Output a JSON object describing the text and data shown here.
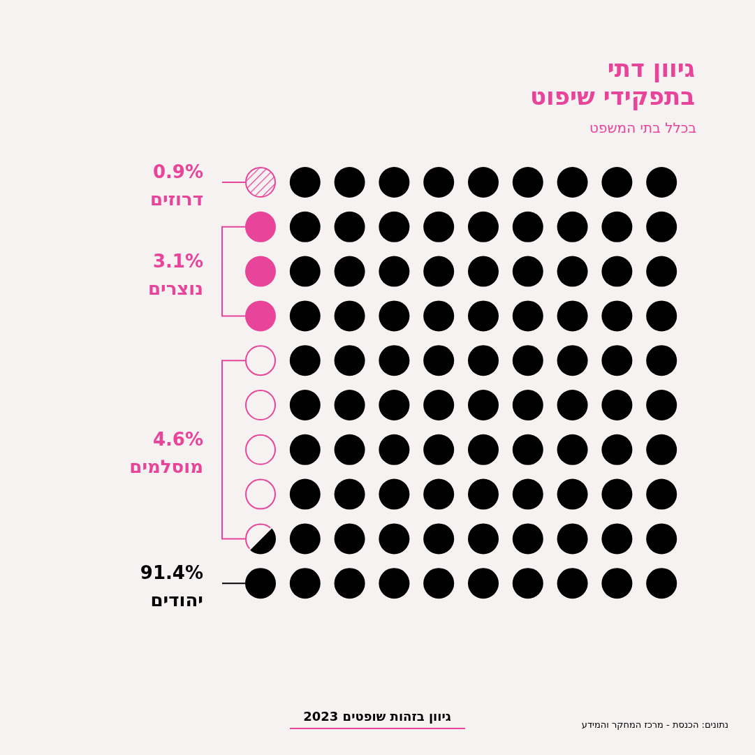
{
  "chart_data": {
    "type": "other",
    "title": "גיוון דתי\nבתפקידי שיפוט",
    "subtitle": "בכלל בתי המשפט",
    "categories": [
      "דרוזים",
      "נוצרים",
      "מוסלמים",
      "יהודים"
    ],
    "values": [
      0.9,
      3.1,
      4.6,
      91.4
    ],
    "value_labels": [
      "0.9%",
      "3.1%",
      "4.6%",
      "91.4%"
    ],
    "colors": [
      "#e8449a",
      "#e8449a",
      "#e8449a",
      "#000000"
    ],
    "annotations": [
      "גיוון בזהות שופטים 2023",
      "נתונים: הכנסת - מרכז המחקר והמידע"
    ]
  }
}
